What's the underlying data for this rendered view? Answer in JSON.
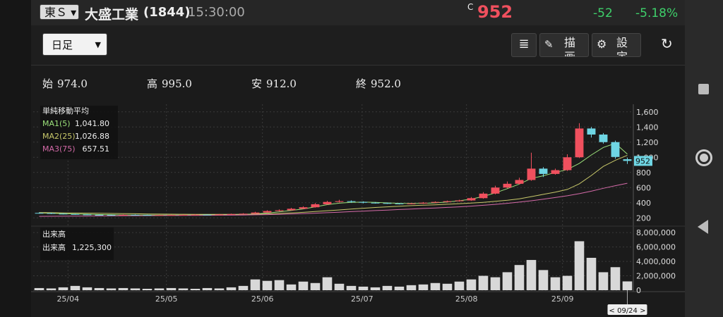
{
  "header": {
    "market": "東Ｓ",
    "company": "大盛工業",
    "code": "(1844)",
    "time": "15:30:00",
    "price_flag": "C",
    "price": "952",
    "change": "-52",
    "change_pct": "-5.18%"
  },
  "toolbar": {
    "period": "日足",
    "draw": "描画",
    "settings": "設定"
  },
  "ohlc": [
    {
      "label": "始",
      "value": "974.0"
    },
    {
      "label": "高",
      "value": "995.0"
    },
    {
      "label": "安",
      "value": "912.0"
    },
    {
      "label": "終",
      "value": "952.0"
    }
  ],
  "chart_data": {
    "type": "candlestick",
    "ma_title": "単純移動平均",
    "open": [
      265,
      262,
      255,
      250,
      245,
      240,
      238,
      236,
      240,
      238,
      235,
      237,
      238,
      240,
      242,
      240,
      245,
      250,
      255,
      270,
      290,
      300,
      320,
      340,
      380,
      410,
      420,
      410,
      400,
      395,
      390,
      385,
      390,
      400,
      410,
      420,
      430,
      460,
      520,
      600,
      650,
      700,
      850,
      780,
      830,
      1000,
      1380,
      1300,
      1200,
      974
    ],
    "high": [
      272,
      268,
      260,
      255,
      250,
      246,
      243,
      246,
      245,
      242,
      242,
      243,
      245,
      248,
      246,
      251,
      256,
      262,
      280,
      300,
      312,
      332,
      352,
      395,
      425,
      438,
      430,
      418,
      408,
      402,
      396,
      398,
      408,
      418,
      428,
      440,
      475,
      540,
      625,
      680,
      730,
      1060,
      870,
      850,
      1040,
      1450,
      1400,
      1320,
      1220,
      995
    ],
    "low": [
      256,
      250,
      245,
      240,
      235,
      233,
      231,
      232,
      233,
      230,
      231,
      233,
      234,
      236,
      235,
      236,
      241,
      246,
      250,
      265,
      285,
      296,
      315,
      335,
      372,
      402,
      400,
      392,
      388,
      384,
      378,
      380,
      385,
      394,
      404,
      414,
      425,
      452,
      510,
      590,
      640,
      690,
      740,
      770,
      820,
      990,
      1260,
      1180,
      980,
      912
    ],
    "close": [
      262,
      255,
      250,
      245,
      240,
      238,
      236,
      240,
      238,
      235,
      237,
      238,
      240,
      242,
      240,
      245,
      250,
      255,
      270,
      290,
      300,
      320,
      340,
      380,
      410,
      420,
      410,
      400,
      395,
      390,
      385,
      390,
      400,
      410,
      420,
      430,
      460,
      520,
      600,
      650,
      700,
      850,
      780,
      830,
      1000,
      1380,
      1300,
      1200,
      1004,
      952
    ],
    "up_color": "#f0505e",
    "down_color": "#6fd6e4",
    "ma": [
      {
        "name": "MA1(5)",
        "color": "#9be07a",
        "current_label": "1,041.80",
        "values": [
          265,
          260,
          256,
          252,
          248,
          244,
          241,
          239,
          238,
          237,
          237,
          238,
          238,
          239,
          240,
          241,
          243,
          246,
          252,
          264,
          279,
          298,
          318,
          346,
          374,
          394,
          404,
          408,
          404,
          398,
          392,
          390,
          392,
          398,
          409,
          426,
          448,
          482,
          530,
          586,
          646,
          720,
          756,
          800,
          838,
          920,
          1030,
          1130,
          1184,
          1041.8
        ]
      },
      {
        "name": "MA2(25)",
        "color": "#c8c86a",
        "current_label": "1,026.88",
        "values": [
          270,
          268,
          266,
          264,
          262,
          260,
          258,
          256,
          254,
          252,
          250,
          249,
          248,
          247,
          246,
          246,
          246,
          247,
          248,
          252,
          258,
          265,
          273,
          283,
          294,
          305,
          316,
          327,
          337,
          346,
          354,
          361,
          367,
          373,
          380,
          387,
          395,
          405,
          418,
          433,
          452,
          480,
          510,
          540,
          575,
          650,
          760,
          880,
          960,
          1026.88
        ]
      },
      {
        "name": "MA3(75)",
        "color": "#d46aa8",
        "current_label": "657.51",
        "values": [
          220,
          221,
          222,
          223,
          224,
          225,
          226,
          227,
          228,
          229,
          230,
          231,
          232,
          233,
          234,
          235,
          236,
          238,
          240,
          243,
          247,
          251,
          256,
          262,
          268,
          275,
          282,
          289,
          296,
          303,
          310,
          317,
          324,
          331,
          338,
          346,
          355,
          366,
          378,
          392,
          408,
          426,
          446,
          468,
          492,
          520,
          552,
          590,
          625,
          657.51
        ]
      }
    ],
    "ylim": [
      100,
      1700
    ],
    "yticks": [
      200,
      400,
      600,
      800,
      {
        "value": 1000,
        "label": "1,000"
      },
      {
        "value": 1200,
        "label": "1,200"
      },
      {
        "value": 1400,
        "label": "1,400"
      },
      {
        "value": 1600,
        "label": "1,600"
      }
    ],
    "xlim": [
      -0.5,
      49.5
    ],
    "xticks": [
      {
        "value": 2.4,
        "label": "25/04"
      },
      {
        "value": 10.6,
        "label": "25/05"
      },
      {
        "value": 18.6,
        "label": "25/06"
      },
      {
        "value": 26.9,
        "label": "25/07"
      },
      {
        "value": 35.6,
        "label": "25/08"
      },
      {
        "value": 43.6,
        "label": "25/09"
      }
    ],
    "volume_title": "出来高",
    "volume_name": "出来高",
    "volume_current_label": "1,225,300",
    "volume_color": "#d8d8d8",
    "volume": [
      300000,
      250000,
      400000,
      600000,
      400000,
      300000,
      250000,
      300000,
      250000,
      200000,
      250000,
      300000,
      250000,
      200000,
      300000,
      250000,
      400000,
      600000,
      1500000,
      1300000,
      1400000,
      800000,
      1200000,
      1000000,
      1800000,
      900000,
      600000,
      500000,
      400000,
      600000,
      500000,
      700000,
      800000,
      1000000,
      900000,
      1200000,
      1500000,
      2000000,
      1800000,
      2500000,
      3500000,
      4200000,
      2800000,
      1800000,
      2000000,
      6800000,
      4500000,
      2500000,
      3200000,
      1225300
    ],
    "vlim": [
      0,
      8800000
    ],
    "vticks": [
      0,
      {
        "value": 2000000,
        "label": "2,000,000"
      },
      {
        "value": 4000000,
        "label": "4,000,000"
      },
      {
        "value": 6000000,
        "label": "6,000,000"
      },
      {
        "value": 8000000,
        "label": "8,000,000"
      }
    ],
    "cursor_label": "< 09/24 >",
    "grid": true
  }
}
